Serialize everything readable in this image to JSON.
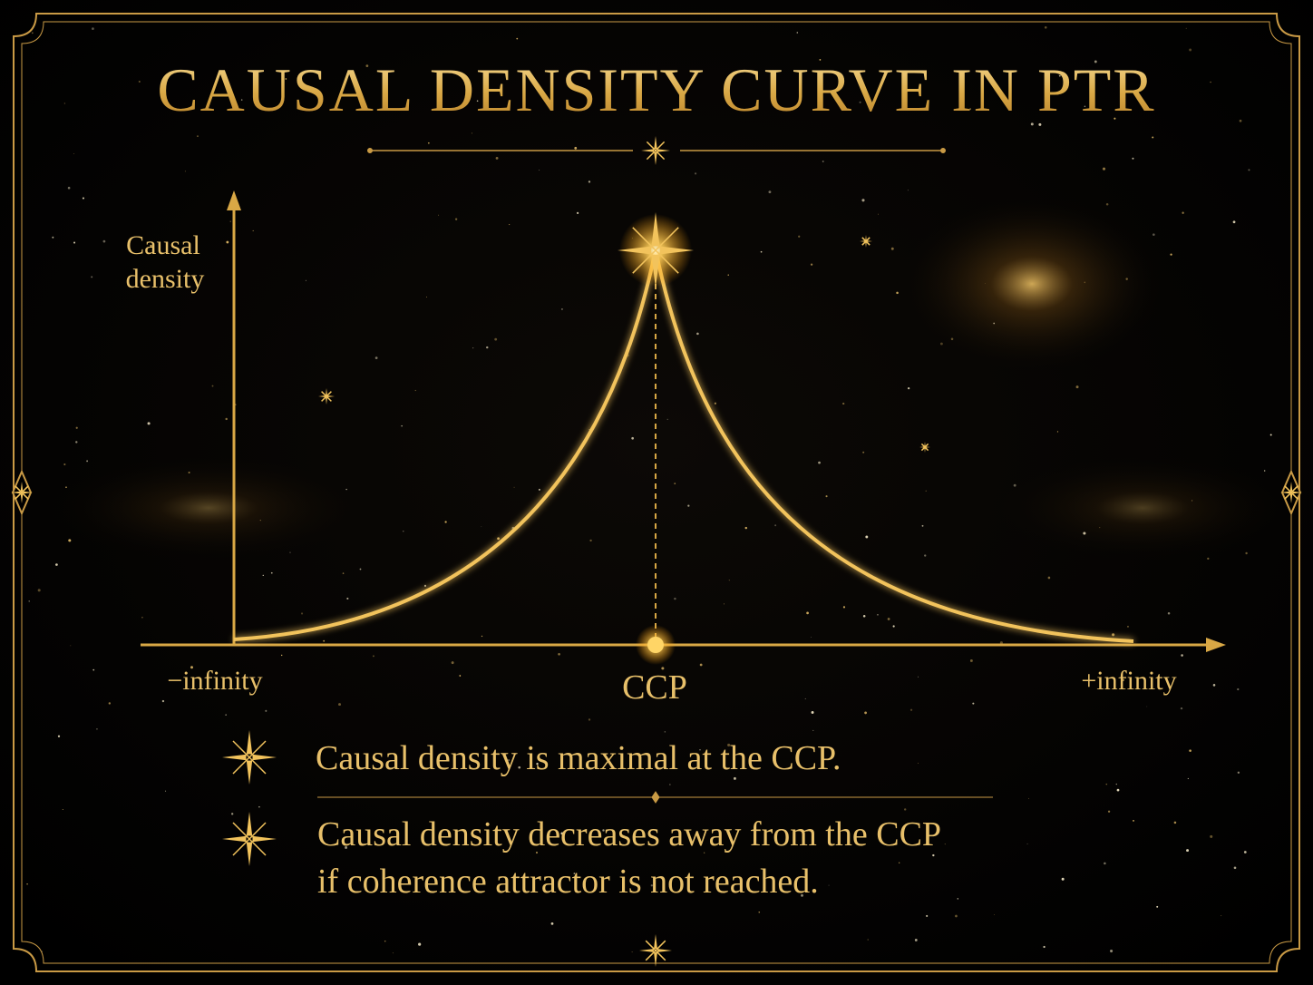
{
  "header": {
    "title": "CAUSAL DENSITY CURVE IN PTR"
  },
  "axes": {
    "y_label": [
      "Causal",
      "density"
    ],
    "x_left": "−infinity",
    "x_center": "CCP",
    "x_right": "+infinity"
  },
  "notes": [
    {
      "lines": [
        "Causal density is maximal at the CCP."
      ]
    },
    {
      "lines": [
        "Causal density decreases away from the CCP",
        "if coherence attractor is not reached."
      ]
    }
  ]
}
